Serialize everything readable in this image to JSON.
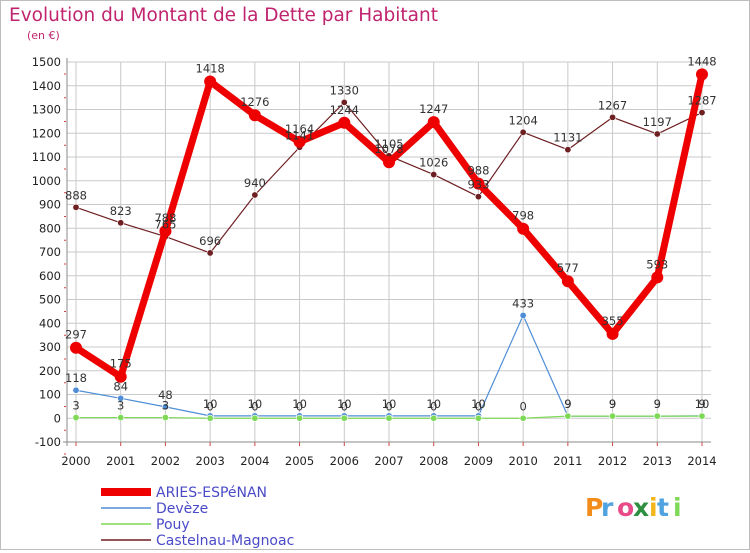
{
  "title": "Evolution du Montant de la Dette par Habitant",
  "subtitle": "(en €)",
  "brand": "Proxiti",
  "colors": {
    "background": "#ffffff",
    "grid": "#c9c9c9",
    "title": "#c0246e",
    "axis_text": "#222222",
    "legend_text": "#4a4ac8"
  },
  "chart_data": {
    "type": "line",
    "title": "Evolution du Montant de la Dette par Habitant",
    "subtitle": "(en €)",
    "xlabel": "",
    "ylabel": "",
    "x": [
      "2000",
      "2001",
      "2002",
      "2003",
      "2004",
      "2005",
      "2006",
      "2007",
      "2008",
      "2009",
      "2010",
      "2011",
      "2012",
      "2013",
      "2014"
    ],
    "ylim": [
      -100,
      1500
    ],
    "yticks": [
      -100,
      0,
      100,
      200,
      300,
      400,
      500,
      600,
      700,
      800,
      900,
      1000,
      1100,
      1200,
      1300,
      1400,
      1500
    ],
    "grid": true,
    "legend_position": "bottom-left",
    "series": [
      {
        "name": "ARIES-ESPéNAN",
        "color": "#ee0000",
        "values": [
          297,
          175,
          788,
          1418,
          1276,
          1164,
          1244,
          1078,
          1247,
          988,
          798,
          577,
          355,
          593,
          1448
        ],
        "labels": [
          "297",
          "175",
          "788",
          "1418",
          "1276",
          "1164",
          "1244",
          "1078",
          "1247",
          "988",
          "798",
          "577",
          "355",
          "593",
          "1448"
        ]
      },
      {
        "name": "Devèze",
        "color": "#4f8ed6",
        "values": [
          118,
          84,
          48,
          10,
          10,
          10,
          10,
          10,
          10,
          10,
          433,
          9,
          9,
          9,
          10
        ],
        "labels": [
          "118",
          "84",
          "48",
          "10",
          "10",
          "10",
          "10",
          "10",
          "10",
          "10",
          "433",
          "9",
          "9",
          "9",
          "10"
        ]
      },
      {
        "name": "Pouy",
        "color": "#7ed957",
        "values": [
          3,
          3,
          3,
          0,
          0,
          0,
          0,
          0,
          0,
          0,
          0,
          9,
          9,
          9,
          9
        ],
        "labels": [
          "3",
          "3",
          "3",
          "0",
          "0",
          "0",
          "0",
          "0",
          "0",
          "0",
          "0",
          "9",
          "9",
          "9",
          "9"
        ]
      },
      {
        "name": "Castelnau-Magnoac",
        "color": "#6e1f22",
        "values": [
          888,
          823,
          765,
          696,
          940,
          1141,
          1330,
          1105,
          1026,
          933,
          1204,
          1131,
          1267,
          1197,
          1287
        ],
        "labels": [
          "888",
          "823",
          "765",
          "696",
          "940",
          "1141",
          "1330",
          "1105",
          "1026",
          "933",
          "1204",
          "1131",
          "1267",
          "1197",
          "1287"
        ]
      }
    ]
  }
}
